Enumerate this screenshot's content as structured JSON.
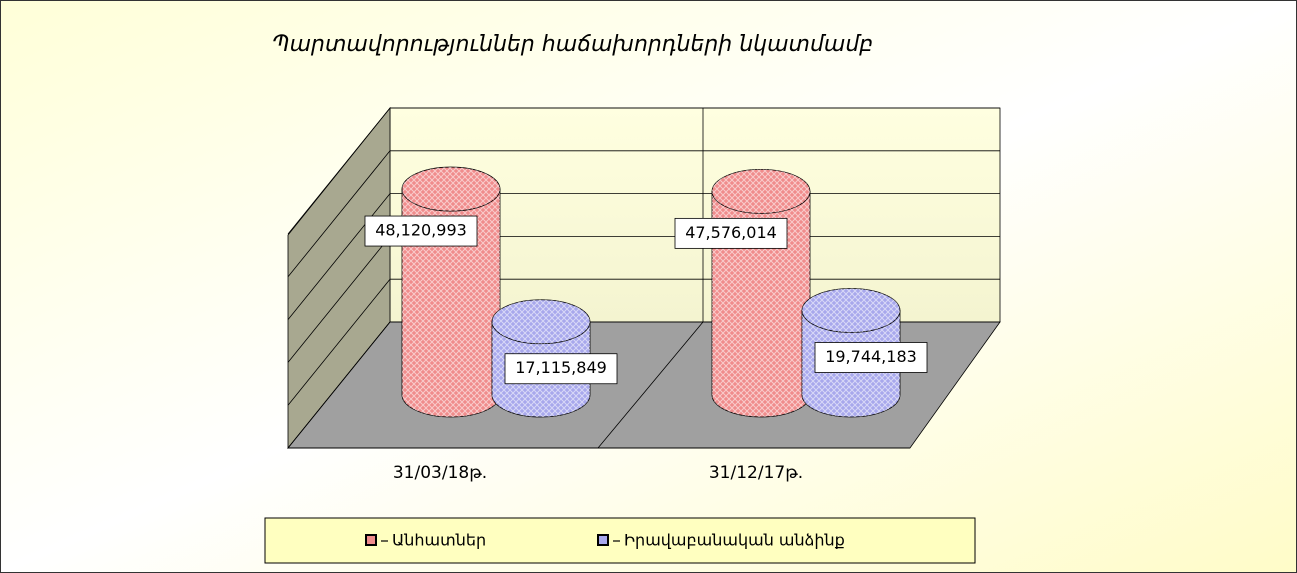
{
  "chart_data": {
    "type": "bar3d",
    "title": "Պարտավորություններ հաճախորդների նկատմամբ",
    "categories": [
      "31/03/18թ.",
      "31/12/17թ."
    ],
    "series": [
      {
        "name": "Անհատներ",
        "color": "#f08c8c",
        "values": [
          48120993,
          47576014
        ],
        "value_labels": [
          "48,120,993",
          "47,576,014"
        ]
      },
      {
        "name": "Իրավաբանական անձինք",
        "color": "#a8a8ec",
        "values": [
          17115849,
          19744183
        ],
        "value_labels": [
          "17,115,849",
          "19,744,183"
        ]
      }
    ],
    "ylim": [
      0,
      50000000
    ],
    "yticks": [
      0,
      10000000,
      20000000,
      30000000,
      40000000,
      50000000
    ],
    "grid": true
  }
}
